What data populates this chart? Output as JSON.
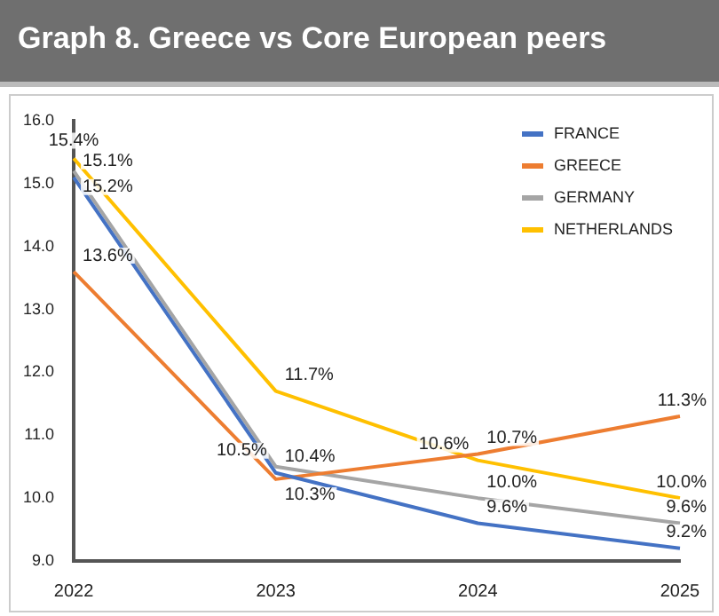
{
  "chart_data": {
    "type": "line",
    "title": "Graph 8. Greece vs Core European peers",
    "categories": [
      "2022",
      "2023",
      "2024",
      "2025"
    ],
    "series": [
      {
        "name": "FRANCE",
        "color": "#4472c4",
        "values": [
          15.1,
          10.4,
          9.6,
          9.2
        ],
        "value_labels": [
          "15.1%",
          "10.4%",
          "9.6%",
          "9.2%"
        ]
      },
      {
        "name": "GREECE",
        "color": "#ed7d31",
        "values": [
          13.6,
          10.3,
          10.7,
          11.3
        ],
        "value_labels": [
          "13.6%",
          "10.3%",
          "10.7%",
          "11.3%"
        ]
      },
      {
        "name": "GERMANY",
        "color": "#a5a5a5",
        "values": [
          15.2,
          10.5,
          10.0,
          9.6
        ],
        "value_labels": [
          "15.2%",
          "10.5%",
          "10.0%",
          "9.6%"
        ]
      },
      {
        "name": "NETHERLANDS",
        "color": "#ffc000",
        "values": [
          15.4,
          11.7,
          10.6,
          10.0
        ],
        "value_labels": [
          "15.4%",
          "11.7%",
          "10.6%",
          "10.0%"
        ]
      }
    ],
    "ylim": [
      9,
      16
    ],
    "yticks": [
      {
        "value": 9,
        "label": "9.0"
      },
      {
        "value": 10,
        "label": "10.0"
      },
      {
        "value": 11,
        "label": "11.0"
      },
      {
        "value": 12,
        "label": "12.0"
      },
      {
        "value": 13,
        "label": "13.0"
      },
      {
        "value": 14,
        "label": "14.0"
      },
      {
        "value": 15,
        "label": "15.0"
      },
      {
        "value": 16,
        "label": "16.0"
      }
    ],
    "grid": false,
    "legend": "top right",
    "marker": "none",
    "line_style": "solid"
  }
}
